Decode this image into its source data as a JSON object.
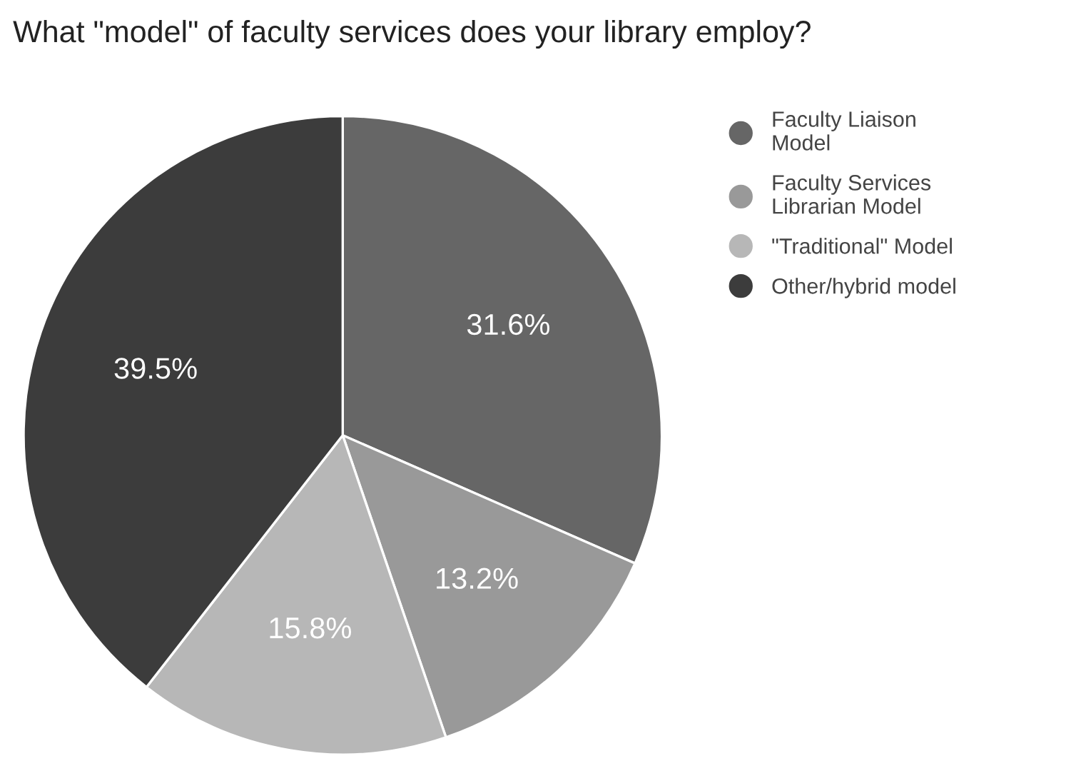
{
  "chart_data": {
    "type": "pie",
    "title": "What \"model\" of faculty services does your library employ?",
    "categories": [
      "Faculty Liaison Model",
      "Faculty Services Librarian Model",
      "\"Traditional\" Model",
      "Other/hybrid model"
    ],
    "values": [
      31.6,
      13.2,
      15.8,
      39.5
    ],
    "value_labels": [
      "31.6%",
      "13.2%",
      "15.8%",
      "39.5%"
    ],
    "colors": [
      "#666666",
      "#999999",
      "#b7b7b7",
      "#3c3c3c"
    ],
    "legend": "top right"
  }
}
